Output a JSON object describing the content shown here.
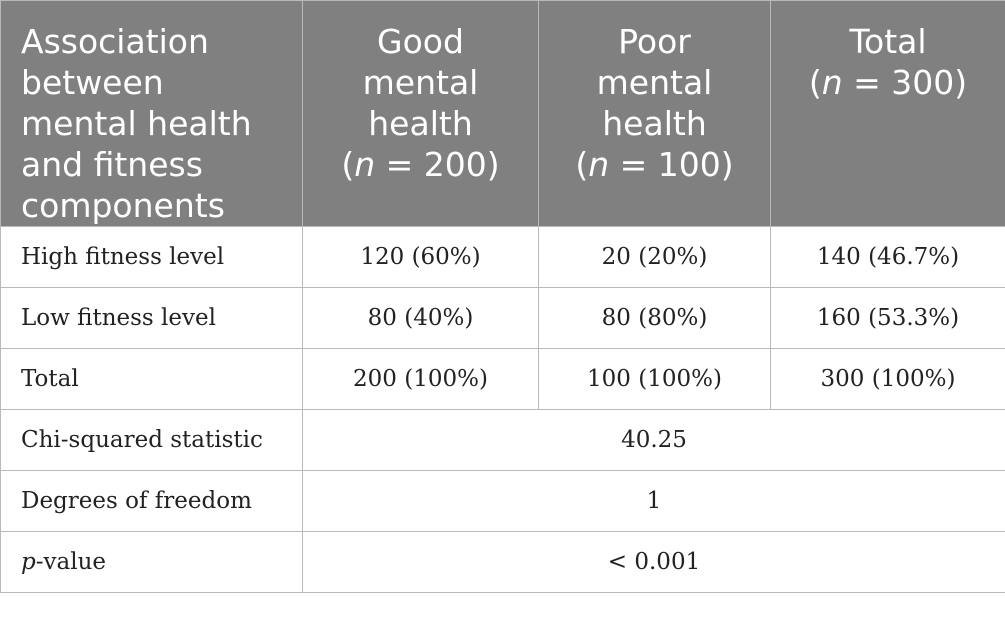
{
  "header": {
    "col1": [
      "Association",
      "between",
      "mental health",
      "and fitness",
      "components"
    ],
    "col2": {
      "lines": [
        "Good",
        "mental",
        "health"
      ],
      "n_var": "n",
      "n_rest": " = 200)"
    },
    "col3": {
      "lines": [
        "Poor",
        "mental",
        "health"
      ],
      "n_var": "n",
      "n_rest": " = 100)"
    },
    "col4": {
      "lines": [
        "Total"
      ],
      "n_var": "n",
      "n_rest": " = 300)"
    },
    "open_paren": "("
  },
  "rows": [
    {
      "label": "High fitness level",
      "good": "120 (60%)",
      "poor": "20 (20%)",
      "total": "140 (46.7%)"
    },
    {
      "label": "Low fitness level",
      "good": "80 (40%)",
      "poor": "80 (80%)",
      "total": "160 (53.3%)"
    },
    {
      "label": "Total",
      "good": "200 (100%)",
      "poor": "100 (100%)",
      "total": "300 (100%)"
    }
  ],
  "stats": [
    {
      "label": "Chi-squared statistic",
      "value": "40.25"
    },
    {
      "label": "Degrees of freedom",
      "value": "1"
    },
    {
      "label_italic": "p",
      "label_rest": "-value",
      "value": "< 0.001"
    }
  ]
}
